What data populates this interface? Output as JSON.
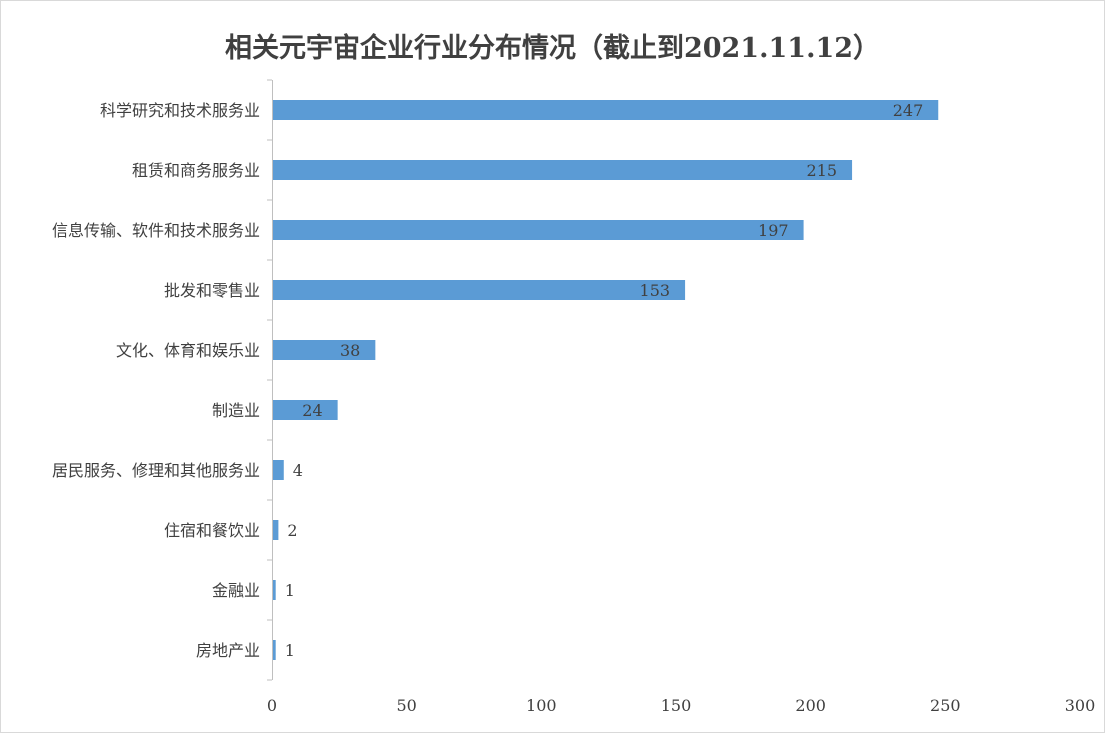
{
  "chart_data": {
    "type": "bar",
    "orientation": "horizontal",
    "title": "相关元宇宙企业行业分布情况（截止到2021.11.12）",
    "xlabel": "",
    "ylabel": "",
    "xlim": [
      0,
      300
    ],
    "x_ticks": [
      0,
      50,
      100,
      150,
      200,
      250,
      300
    ],
    "grid": false,
    "legend": "none",
    "bar_color": "#5b9bd5",
    "categories": [
      "科学研究和技术服务业",
      "租赁和商务服务业",
      "信息传输、软件和技术服务业",
      "批发和零售业",
      "文化、体育和娱乐业",
      "制造业",
      "居民服务、修理和其他服务业",
      "住宿和餐饮业",
      "金融业",
      "房地产业"
    ],
    "values": [
      247,
      215,
      197,
      153,
      38,
      24,
      4,
      2,
      1,
      1
    ]
  }
}
